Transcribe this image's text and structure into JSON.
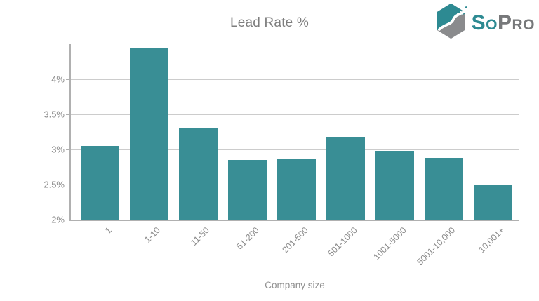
{
  "logo": {
    "icon": "sopro-hexagon-icon",
    "text_primary": "So",
    "text_secondary": "Pro",
    "teal": "#2d8a92",
    "gray": "#8a8b8d"
  },
  "colors": {
    "bar": "#398e95",
    "grid": "#cccccc",
    "axis": "#b0b0b0",
    "tick_text": "#8a8a8a",
    "title_text": "#7d7d7d"
  },
  "chart_data": {
    "type": "bar",
    "title": "Lead Rate %",
    "xlabel": "Company size",
    "ylabel": "",
    "categories": [
      "1",
      "1-10",
      "11-50",
      "51-200",
      "201-500",
      "501-1000",
      "1001-5000",
      "5001-10,000",
      "10,001+"
    ],
    "values": [
      3.05,
      4.45,
      3.3,
      2.85,
      2.86,
      3.18,
      2.98,
      2.88,
      2.49
    ],
    "ylim": [
      2,
      4.5
    ],
    "yticks": [
      2,
      2.5,
      3,
      3.5,
      4
    ],
    "ytick_labels": [
      "2%",
      "2.5%",
      "3%",
      "3.5%",
      "4%"
    ],
    "grid": true,
    "legend": false,
    "bar_color": "#398e95"
  }
}
